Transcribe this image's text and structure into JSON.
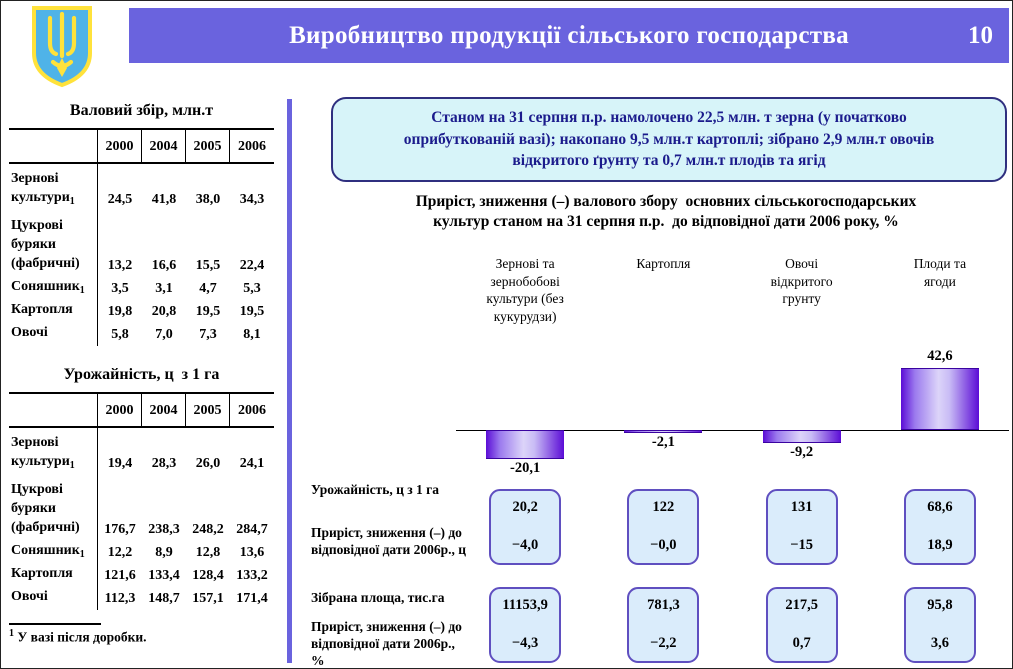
{
  "header": {
    "title": "Виробництво продукції сільського господарства",
    "page_number": "10",
    "emblem": "ukraine-coat-of-arms"
  },
  "left_panel": {
    "table1": {
      "title": "Валовий збір, млн.т",
      "columns": [
        "2000",
        "2004",
        "2005",
        "2006"
      ],
      "rows": [
        {
          "label": "Зернові\nкультури",
          "sup": "1",
          "values": [
            "24,5",
            "41,8",
            "38,0",
            "34,3"
          ]
        },
        {
          "label": "Цукрові\nбуряки\n(фабричні)",
          "sup": "",
          "values": [
            "13,2",
            "16,6",
            "15,5",
            "22,4"
          ]
        },
        {
          "label": "Соняшник",
          "sup": "1",
          "values": [
            "3,5",
            "3,1",
            "4,7",
            "5,3"
          ]
        },
        {
          "label": "Картопля",
          "sup": "",
          "values": [
            "19,8",
            "20,8",
            "19,5",
            "19,5"
          ]
        },
        {
          "label": "Овочі",
          "sup": "",
          "values": [
            "5,8",
            "7,0",
            "7,3",
            "8,1"
          ]
        }
      ]
    },
    "table2": {
      "title": "Урожайність, ц  з 1 га",
      "columns": [
        "2000",
        "2004",
        "2005",
        "2006"
      ],
      "rows": [
        {
          "label": "Зернові\nкультури",
          "sup": "1",
          "values": [
            "19,4",
            "28,3",
            "26,0",
            "24,1"
          ]
        },
        {
          "label": "Цукрові\nбуряки\n(фабричні)",
          "sup": "",
          "values": [
            "176,7",
            "238,3",
            "248,2",
            "284,7"
          ]
        },
        {
          "label": "Соняшник",
          "sup": "1",
          "values": [
            "12,2",
            "8,9",
            "12,8",
            "13,6"
          ]
        },
        {
          "label": "Картопля",
          "sup": "",
          "values": [
            "121,6",
            "133,4",
            "128,4",
            "133,2"
          ]
        },
        {
          "label": "Овочі",
          "sup": "",
          "values": [
            "112,3",
            "148,7",
            "157,1",
            "171,4"
          ]
        }
      ]
    },
    "footnote": {
      "sup": "1",
      "text": " У вазі після доробки."
    }
  },
  "right_panel": {
    "info_box": "Станом на 31 серпня п.р. намолочено 22,5 млн. т зерна (у початково\nоприбуткованій вазі); накопано 9,5 млн.т картоплі; зібрано 2,9 млн.т овочів\nвідкритого ґрунту та 0,7 млн.т плодів та ягід",
    "chart_title": "Приріст, зниження (–) валового збору  основних сільськогосподарських\nкультур станом на 31 серпня п.р.  до відповідної дати 2006 року, %"
  },
  "chart_data": {
    "type": "bar",
    "title": "Приріст, зниження (–) валового збору основних сільськогосподарських культур станом на 31 серпня п.р. до відповідної дати 2006 року, %",
    "categories": [
      "Зернові та зернобобові культури (без кукурудзи)",
      "Картопля",
      "Овочі відкритого грунту",
      "Плоди та ягоди"
    ],
    "values": [
      -20.1,
      -2.1,
      -9.2,
      42.6
    ],
    "value_labels": [
      "-20,1",
      "-2,1",
      "-9,2",
      "42,6"
    ],
    "ylim": [
      -25,
      50
    ],
    "grid": false,
    "legend": false,
    "bar_gradient": [
      "#5B0CD6",
      "#DCD4F9",
      "#5B0CD6"
    ]
  },
  "metrics": {
    "group1": {
      "row1_label": "Урожайність, ц з 1 га",
      "row2_label": "Приріст, зниження (–) до\nвідповідної дати 2006р., ц",
      "top_values": [
        "20,2",
        "122",
        "131",
        "68,6"
      ],
      "bottom_values": [
        "−4,0",
        "−0,0",
        "−15",
        "18,9"
      ]
    },
    "group2": {
      "row1_label": "Зібрана площа, тис.га",
      "row2_label": "Приріст, зниження (–) до\nвідповідної дати 2006р., %",
      "top_values": [
        "11153,9",
        "781,3",
        "217,5",
        "95,8"
      ],
      "bottom_values": [
        "−4,3",
        "−2,2",
        "0,7",
        "3,6"
      ]
    }
  }
}
